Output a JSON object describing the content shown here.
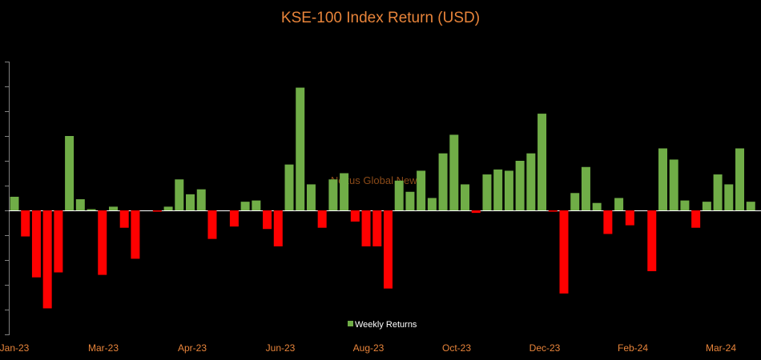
{
  "chart_data": {
    "type": "bar",
    "title": "KSE-100 Index Return (USD)",
    "watermark": "Nexus Global News",
    "xlabel": "",
    "ylabel": "",
    "x_tick_labels": [
      "Jan-23",
      "Mar-23",
      "Apr-23",
      "Jun-23",
      "Aug-23",
      "Oct-23",
      "Dec-23",
      "Feb-24",
      "Mar-24"
    ],
    "ylim": [
      -5,
      6
    ],
    "grid": false,
    "legend": {
      "position": "bottom-center"
    },
    "colors": {
      "positive": "#70ad47",
      "negative": "#ff0000",
      "title": "#e8843a",
      "axis": "#808080"
    },
    "series": [
      {
        "name": "Weekly Returns",
        "values": [
          0.55,
          -1.05,
          -2.7,
          -3.95,
          -2.5,
          3.0,
          0.45,
          0.05,
          -2.6,
          0.15,
          -0.7,
          -1.95,
          0.0,
          -0.05,
          0.15,
          1.25,
          0.65,
          0.85,
          -1.15,
          0.0,
          -0.65,
          0.35,
          0.4,
          -0.75,
          -1.45,
          1.85,
          4.95,
          1.05,
          -0.7,
          1.25,
          1.5,
          -0.45,
          -1.45,
          -1.45,
          -3.15,
          1.2,
          0.75,
          1.6,
          0.5,
          2.3,
          3.05,
          1.05,
          -0.1,
          1.45,
          1.65,
          1.6,
          2.0,
          2.3,
          3.9,
          -0.05,
          -3.35,
          0.7,
          1.75,
          0.3,
          -0.95,
          0.5,
          -0.6,
          0.0,
          -2.45,
          2.5,
          2.05,
          0.4,
          -0.7,
          0.35,
          1.45,
          1.05,
          2.5,
          0.35
        ]
      }
    ]
  }
}
